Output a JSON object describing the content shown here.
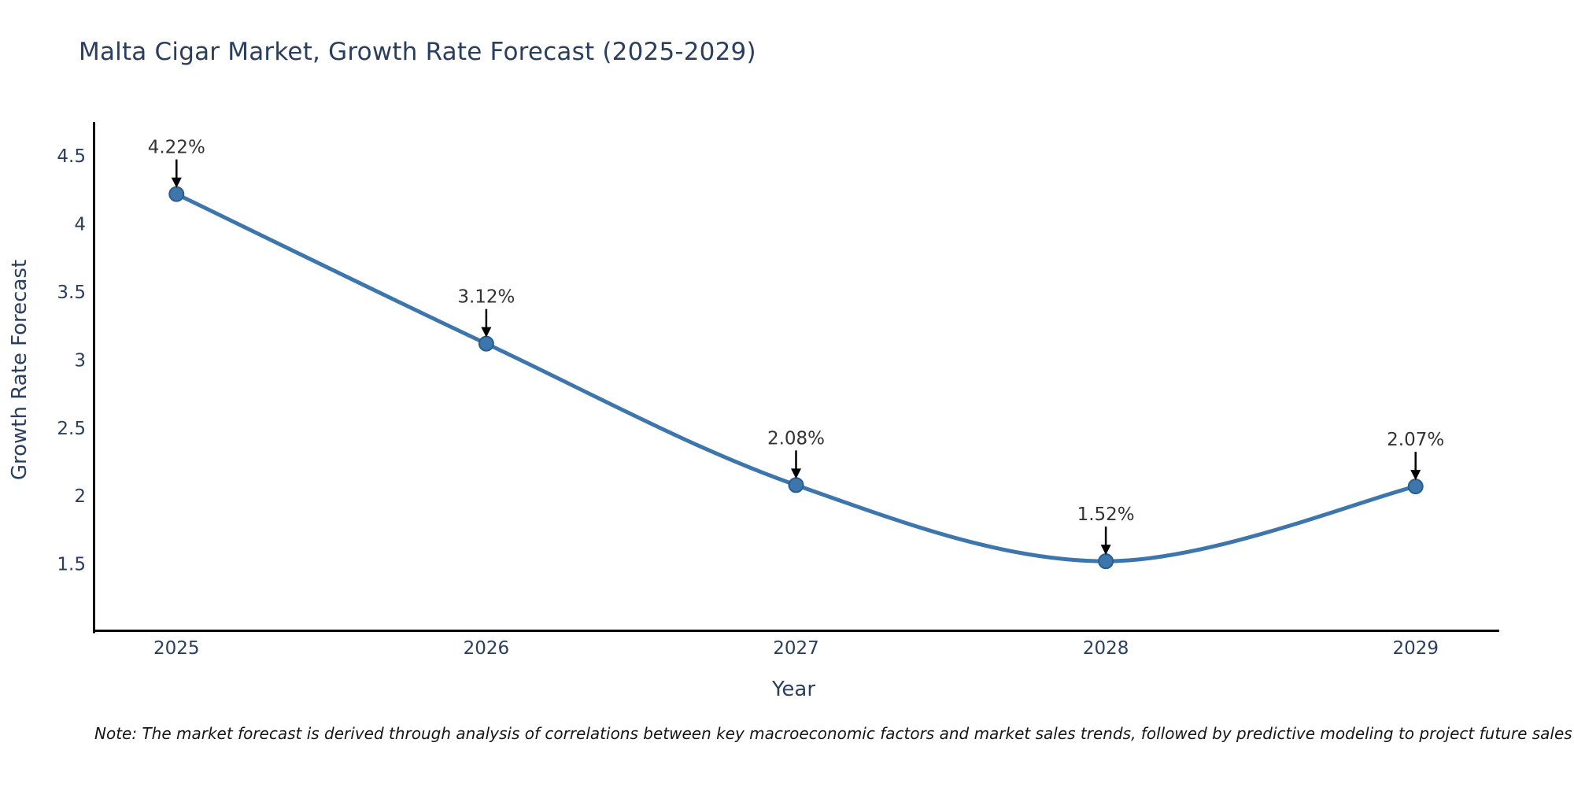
{
  "title": "Malta Cigar Market, Growth Rate Forecast (2025-2029)",
  "note": "Note: The market forecast is derived through analysis of correlations between key macroeconomic factors and market sales trends, followed by predictive modeling to project future sales",
  "chart_data": {
    "type": "line",
    "title": "Malta Cigar Market, Growth Rate Forecast (2025-2029)",
    "x": [
      2025,
      2026,
      2027,
      2028,
      2029
    ],
    "series": [
      {
        "name": "Growth Rate Forecast",
        "values": [
          4.22,
          3.12,
          2.08,
          1.52,
          2.07
        ]
      }
    ],
    "point_labels": [
      "4.22%",
      "3.12%",
      "2.08%",
      "1.52%",
      "2.07%"
    ],
    "xlabel": "Year",
    "ylabel": "Growth Rate Forecast",
    "xticks": [
      2025,
      2026,
      2027,
      2028,
      2029
    ],
    "yticks": [
      4.5,
      4,
      3.5,
      3,
      2.5,
      2,
      1.5
    ],
    "xlim": [
      2024.73,
      2029.27
    ],
    "ylim": [
      1.0,
      4.75
    ],
    "grid": false,
    "legend": false,
    "line_shape": "spline",
    "colors": {
      "line": "#3d76ad",
      "marker_fill": "#3d76ad",
      "marker_edge": "#2b5d8c",
      "axis": "#000000",
      "tick_text": "#2a3f5f",
      "axis_title_text": "#2a3f5f",
      "annotation_text": "#333333",
      "annotation_arrow": "#000000",
      "title_text": "#2a3f5f",
      "background": "#ffffff"
    }
  }
}
